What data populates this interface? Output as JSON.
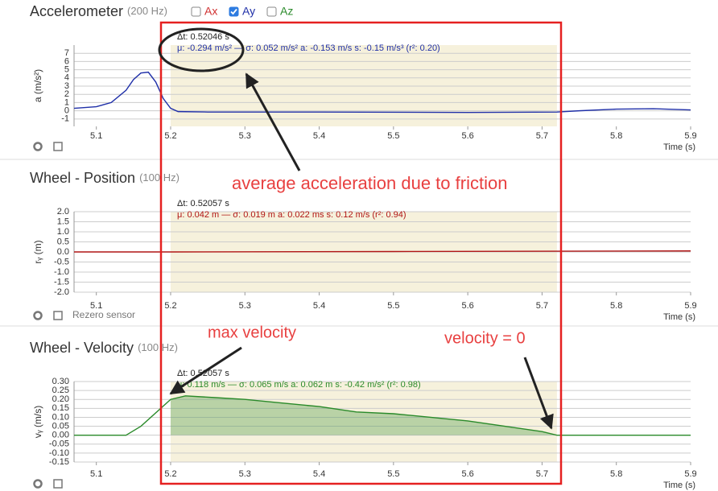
{
  "chart_data": [
    {
      "type": "line",
      "title": "Accelerometer",
      "subtitle": "(200 Hz)",
      "y_label": "a (m/s²)",
      "x_label": "Time (s)",
      "xlim": [
        5.07,
        5.9
      ],
      "xticks": [
        5.1,
        5.2,
        5.3,
        5.4,
        5.5,
        5.6,
        5.7,
        5.8,
        5.9
      ],
      "ylim": [
        -1.9,
        8
      ],
      "yticks": [
        -1,
        0,
        1,
        2,
        3,
        4,
        5,
        6,
        7
      ],
      "selection": [
        5.2,
        5.72
      ],
      "stats": [
        "Δt: 0.52046 s",
        "μ: -0.294 m/s² — σ: 0.052 m/s²   a: -0.153 m/s   s: -0.15 m/s³ (r²: 0.20)"
      ],
      "x": [
        5.07,
        5.1,
        5.12,
        5.14,
        5.15,
        5.16,
        5.17,
        5.18,
        5.19,
        5.2,
        5.21,
        5.25,
        5.4,
        5.6,
        5.72,
        5.75,
        5.8,
        5.85,
        5.9
      ],
      "series": [
        {
          "name": "Ay",
          "color": "#1f2fa8",
          "values": [
            0.3,
            0.5,
            1.0,
            2.5,
            3.8,
            4.6,
            4.7,
            3.5,
            1.5,
            0.3,
            -0.1,
            -0.15,
            -0.15,
            -0.2,
            -0.15,
            0,
            0.2,
            0.25,
            0.1
          ]
        }
      ]
    },
    {
      "type": "line",
      "title": "Wheel - Position",
      "subtitle": "(100 Hz)",
      "y_label": "rᵧ (m)",
      "x_label": "Time (s)",
      "xlim": [
        5.07,
        5.9
      ],
      "xticks": [
        5.1,
        5.2,
        5.3,
        5.4,
        5.5,
        5.6,
        5.7,
        5.8,
        5.9
      ],
      "ylim": [
        -2,
        2
      ],
      "yticks": [
        {
          "value": -2,
          "label": "-2.0"
        },
        -1.5,
        {
          "value": -1,
          "label": "-1.0"
        },
        -0.5,
        {
          "value": 0,
          "label": "0.0"
        },
        0.5,
        {
          "value": 1,
          "label": "1.0"
        },
        1.5,
        {
          "value": 2,
          "label": "2.0"
        }
      ],
      "selection": [
        5.2,
        5.72
      ],
      "stats": [
        "Δt: 0.52057 s",
        "μ: 0.042 m — σ: 0.019 m   a: 0.022 ms   s: 0.12 m/s (r²: 0.94)"
      ],
      "x": [
        5.07,
        5.2,
        5.5,
        5.9
      ],
      "series": [
        {
          "name": "ry",
          "color": "#b01515",
          "values": [
            0,
            0,
            0.02,
            0.05
          ]
        }
      ]
    },
    {
      "type": "line",
      "title": "Wheel - Velocity",
      "subtitle": "(100 Hz)",
      "y_label": "vᵧ (m/s)",
      "x_label": "Time (s)",
      "xlim": [
        5.07,
        5.9
      ],
      "xticks": [
        5.1,
        5.2,
        5.3,
        5.4,
        5.5,
        5.6,
        5.7,
        5.8,
        5.9
      ],
      "ylim": [
        -0.15,
        0.3
      ],
      "yticks": [
        -0.15,
        {
          "value": -0.1,
          "label": "-0.10"
        },
        -0.05,
        {
          "value": 0,
          "label": "0.00"
        },
        0.05,
        {
          "value": 0.1,
          "label": "0.10"
        },
        0.15,
        {
          "value": 0.2,
          "label": "0.20"
        },
        0.25,
        {
          "value": 0.3,
          "label": "0.30"
        }
      ],
      "selection": [
        5.2,
        5.72
      ],
      "stats": [
        "Δt: 0.52057 s",
        "μ: 0.118 m/s — σ: 0.065 m/s   a: 0.062 m   s: -0.42 m/s² (r²: 0.98)"
      ],
      "x": [
        5.07,
        5.14,
        5.16,
        5.2,
        5.22,
        5.26,
        5.3,
        5.35,
        5.4,
        5.45,
        5.5,
        5.55,
        5.6,
        5.65,
        5.7,
        5.72,
        5.9
      ],
      "series": [
        {
          "name": "vy",
          "color": "#2a8a2a",
          "values": [
            0,
            0,
            0.05,
            0.2,
            0.22,
            0.21,
            0.2,
            0.18,
            0.16,
            0.13,
            0.12,
            0.1,
            0.08,
            0.05,
            0.02,
            0,
            0
          ]
        }
      ]
    }
  ],
  "ui": {
    "checkboxes": [
      {
        "label": "Ax",
        "checked": false,
        "color": "#d03030"
      },
      {
        "label": "Ay",
        "checked": true,
        "color": "#1f2fa8"
      },
      {
        "label": "Az",
        "checked": false,
        "color": "#2a8a2a"
      }
    ],
    "rezero": "Rezero sensor"
  },
  "annotations": [
    "average acceleration due to friction",
    "max velocity",
    "velocity = 0"
  ]
}
